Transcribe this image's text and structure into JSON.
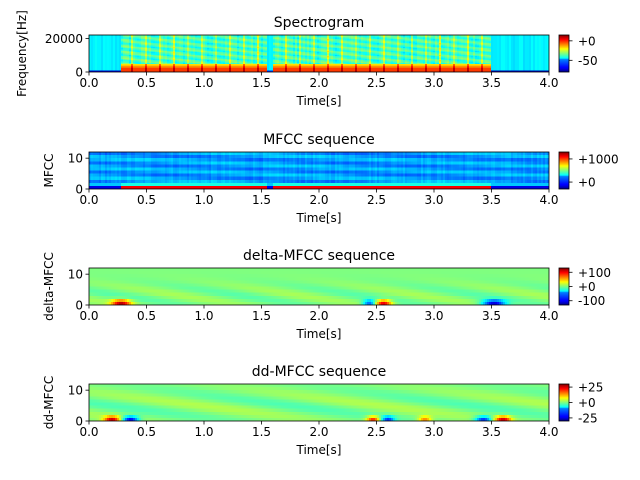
{
  "chart_data": [
    {
      "type": "heatmap",
      "title": "Spectrogram",
      "xlabel": "Time[s]",
      "ylabel": "Frequency[Hz]",
      "xlim": [
        0,
        4.0
      ],
      "ylim": [
        0,
        22050
      ],
      "xticks": [
        "0.0",
        "0.5",
        "1.0",
        "1.5",
        "2.0",
        "2.5",
        "3.0",
        "3.5",
        "4.0"
      ],
      "yticks": [
        {
          "value": 0,
          "label": "0"
        },
        {
          "value": 20000,
          "label": "20000"
        }
      ],
      "colorbar": {
        "range": [
          -80,
          15
        ],
        "ticks": [
          {
            "value": 0,
            "label": "+0"
          },
          {
            "value": -50,
            "label": "-50"
          }
        ]
      },
      "segments": [
        [
          0.27,
          1.55
        ],
        [
          1.6,
          2.5
        ],
        [
          2.5,
          3.5
        ]
      ]
    },
    {
      "type": "heatmap",
      "title": "MFCC sequence",
      "xlabel": "Time[s]",
      "ylabel": "MFCC",
      "xlim": [
        0,
        4.0
      ],
      "ylim": [
        0,
        12
      ],
      "xticks": [
        "0.0",
        "0.5",
        "1.0",
        "1.5",
        "2.0",
        "2.5",
        "3.0",
        "3.5",
        "4.0"
      ],
      "yticks": [
        {
          "value": 0,
          "label": "0"
        },
        {
          "value": 10,
          "label": "10"
        }
      ],
      "colorbar": {
        "range": [
          -300,
          1300
        ],
        "ticks": [
          {
            "value": 1000,
            "label": "+1000"
          },
          {
            "value": 0,
            "label": "+0"
          }
        ]
      }
    },
    {
      "type": "heatmap",
      "title": "delta-MFCC sequence",
      "xlabel": "Time[s]",
      "ylabel": "delta-MFCC",
      "xlim": [
        0,
        4.0
      ],
      "ylim": [
        0,
        12
      ],
      "xticks": [
        "0.0",
        "0.5",
        "1.0",
        "1.5",
        "2.0",
        "2.5",
        "3.0",
        "3.5",
        "4.0"
      ],
      "yticks": [
        {
          "value": 0,
          "label": "0"
        },
        {
          "value": 10,
          "label": "10"
        }
      ],
      "colorbar": {
        "range": [
          -130,
          130
        ],
        "ticks": [
          {
            "value": 100,
            "label": "+100"
          },
          {
            "value": 0,
            "label": "+0"
          },
          {
            "value": -100,
            "label": "-100"
          }
        ]
      }
    },
    {
      "type": "heatmap",
      "title": "dd-MFCC sequence",
      "xlabel": "Time[s]",
      "ylabel": "dd-MFCC",
      "xlim": [
        0,
        4.0
      ],
      "ylim": [
        0,
        12
      ],
      "xticks": [
        "0.0",
        "0.5",
        "1.0",
        "1.5",
        "2.0",
        "2.5",
        "3.0",
        "3.5",
        "4.0"
      ],
      "yticks": [
        {
          "value": 0,
          "label": "0"
        },
        {
          "value": 10,
          "label": "10"
        }
      ],
      "colorbar": {
        "range": [
          -30,
          30
        ],
        "ticks": [
          {
            "value": 25,
            "label": "+25"
          },
          {
            "value": 0,
            "label": "+0"
          },
          {
            "value": -25,
            "label": "-25"
          }
        ]
      }
    }
  ]
}
